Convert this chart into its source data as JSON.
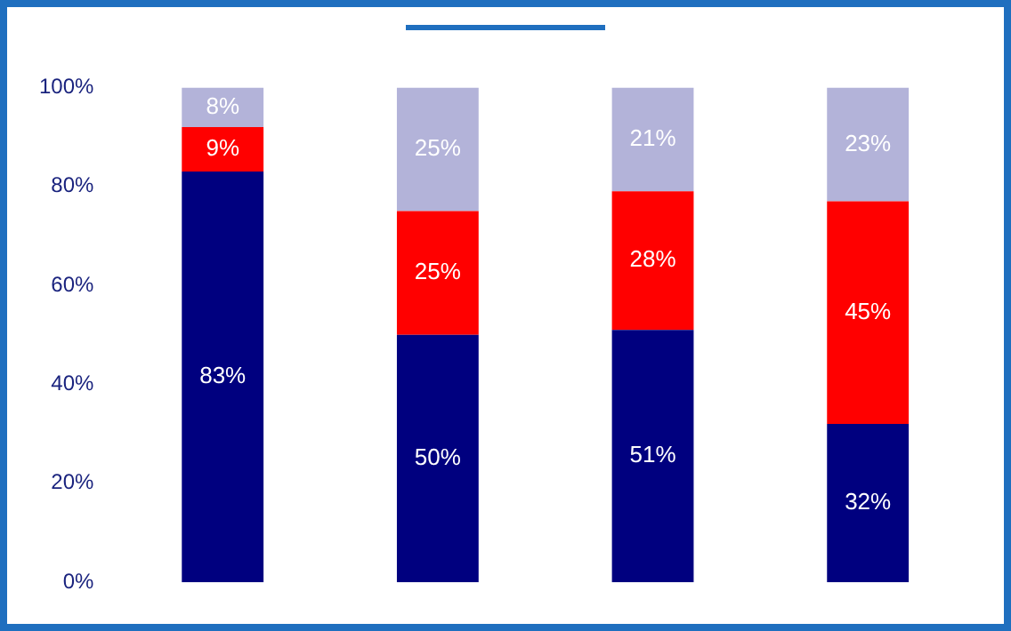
{
  "chart_data": {
    "type": "bar",
    "stacked": true,
    "categories": [
      null,
      null,
      null,
      null
    ],
    "series": [
      {
        "color": "#00007f",
        "values": [
          83,
          50,
          51,
          32
        ],
        "value_labels": [
          "83%",
          "50%",
          "51%",
          "32%"
        ]
      },
      {
        "color": "#ff0000",
        "values": [
          9,
          25,
          28,
          45
        ],
        "value_labels": [
          "9%",
          "25%",
          "28%",
          "45%"
        ]
      },
      {
        "color": "#b3b3d9",
        "values": [
          8,
          25,
          21,
          23
        ],
        "value_labels": [
          "8%",
          "25%",
          "21%",
          "23%"
        ]
      }
    ],
    "ylim": [
      0,
      100
    ],
    "yticks": [
      {
        "value": 0,
        "label": "0%"
      },
      {
        "value": 20,
        "label": "20%"
      },
      {
        "value": 40,
        "label": "40%"
      },
      {
        "value": 60,
        "label": "60%"
      },
      {
        "value": 80,
        "label": "80%"
      },
      {
        "value": 100,
        "label": "100%"
      }
    ],
    "grid": false,
    "legend": false
  }
}
